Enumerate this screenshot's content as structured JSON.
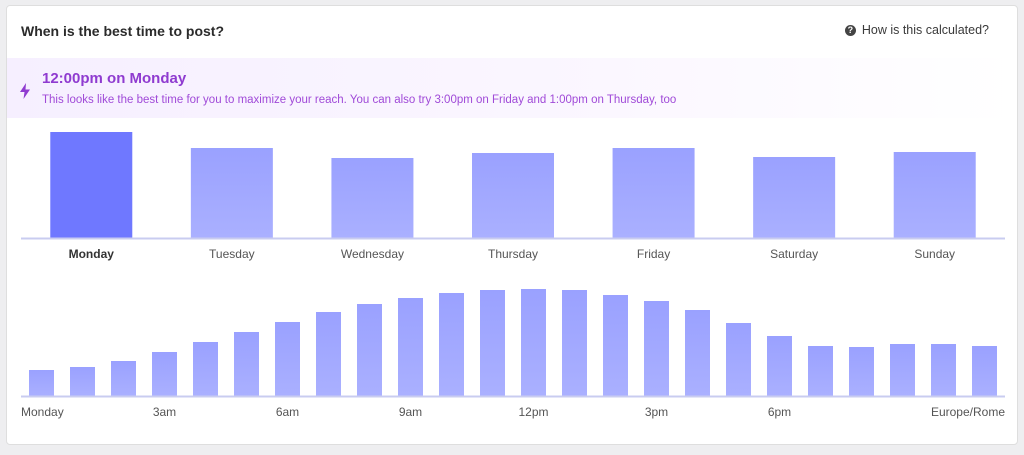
{
  "header": {
    "title": "When is the best time to post?",
    "help_label": "How is this calculated?",
    "help_icon": "question-circle-icon"
  },
  "banner": {
    "icon": "lightning-bolt-icon",
    "best_time": "12:00pm on Monday",
    "description": "This looks like the best time for you to maximize your reach. You can also try 3:00pm on Friday and 1:00pm on Thursday, too"
  },
  "colors": {
    "bar": "#a3a9ff",
    "bar_highlight": "#6f78ff",
    "baseline": "#c9ccf0",
    "accent": "#8f3bd0"
  },
  "chart_data": [
    {
      "type": "bar",
      "categories": [
        "Monday",
        "Tuesday",
        "Wednesday",
        "Thursday",
        "Friday",
        "Saturday",
        "Sunday"
      ],
      "values": [
        106,
        90,
        80,
        85,
        90,
        81,
        86
      ],
      "highlight": "Monday",
      "ylim": [
        0,
        110
      ],
      "grid": false,
      "xlabel": "",
      "ylabel": ""
    },
    {
      "type": "bar",
      "x_ticks": [
        {
          "label": "Monday",
          "index": 0
        },
        {
          "label": "3am",
          "index": 3
        },
        {
          "label": "6am",
          "index": 6
        },
        {
          "label": "9am",
          "index": 9
        },
        {
          "label": "12pm",
          "index": 12
        },
        {
          "label": "3pm",
          "index": 15
        },
        {
          "label": "6pm",
          "index": 18
        },
        {
          "label": "Europe/Rome",
          "index": 23
        }
      ],
      "values": [
        26,
        29,
        35,
        44,
        54,
        64,
        74,
        84,
        92,
        98,
        103,
        106,
        107,
        106,
        101,
        95,
        86,
        73,
        60,
        50,
        49,
        52,
        52,
        50
      ],
      "ylim": [
        0,
        110
      ],
      "grid": false,
      "xlabel": "",
      "ylabel": ""
    }
  ]
}
